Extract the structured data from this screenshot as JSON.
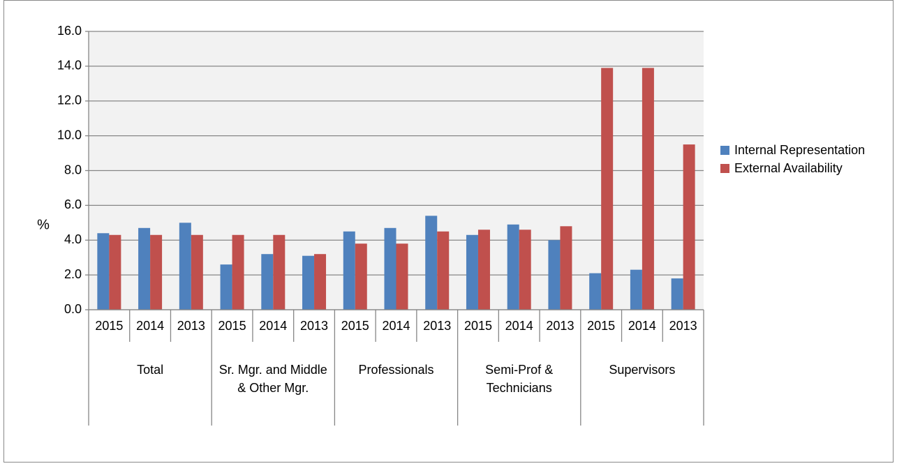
{
  "chart_data": {
    "type": "bar",
    "y_label": "%",
    "categories": [
      "2015",
      "2014",
      "2013",
      "2015",
      "2014",
      "2013",
      "2015",
      "2014",
      "2013",
      "2015",
      "2014",
      "2013",
      "2015",
      "2014",
      "2013"
    ],
    "groups": [
      "Total",
      "Sr. Mgr. and Middle & Other Mgr.",
      "Professionals",
      "Semi-Prof & Technicians",
      "Supervisors"
    ],
    "series": [
      {
        "name": "Internal Representation",
        "color": "#4f81bd",
        "values": [
          4.4,
          4.7,
          5.0,
          2.6,
          3.2,
          3.1,
          4.5,
          4.7,
          5.4,
          4.3,
          4.9,
          4.0,
          2.1,
          2.3,
          1.8
        ]
      },
      {
        "name": "External Availability",
        "color": "#c0504d",
        "values": [
          4.3,
          4.3,
          4.3,
          4.3,
          4.3,
          3.2,
          3.8,
          3.8,
          4.5,
          4.6,
          4.6,
          4.8,
          13.9,
          13.9,
          9.5
        ]
      }
    ],
    "ylim": [
      0,
      16
    ],
    "yticks": [
      {
        "value": 0,
        "label": "0.0"
      },
      {
        "value": 2,
        "label": "2.0"
      },
      {
        "value": 4,
        "label": "4.0"
      },
      {
        "value": 6,
        "label": "6.0"
      },
      {
        "value": 8,
        "label": "8.0"
      },
      {
        "value": 10,
        "label": "10.0"
      },
      {
        "value": 12,
        "label": "12.0"
      },
      {
        "value": 14,
        "label": "14.0"
      },
      {
        "value": 16,
        "label": "16.0"
      }
    ],
    "grid": true,
    "legend": "right"
  }
}
